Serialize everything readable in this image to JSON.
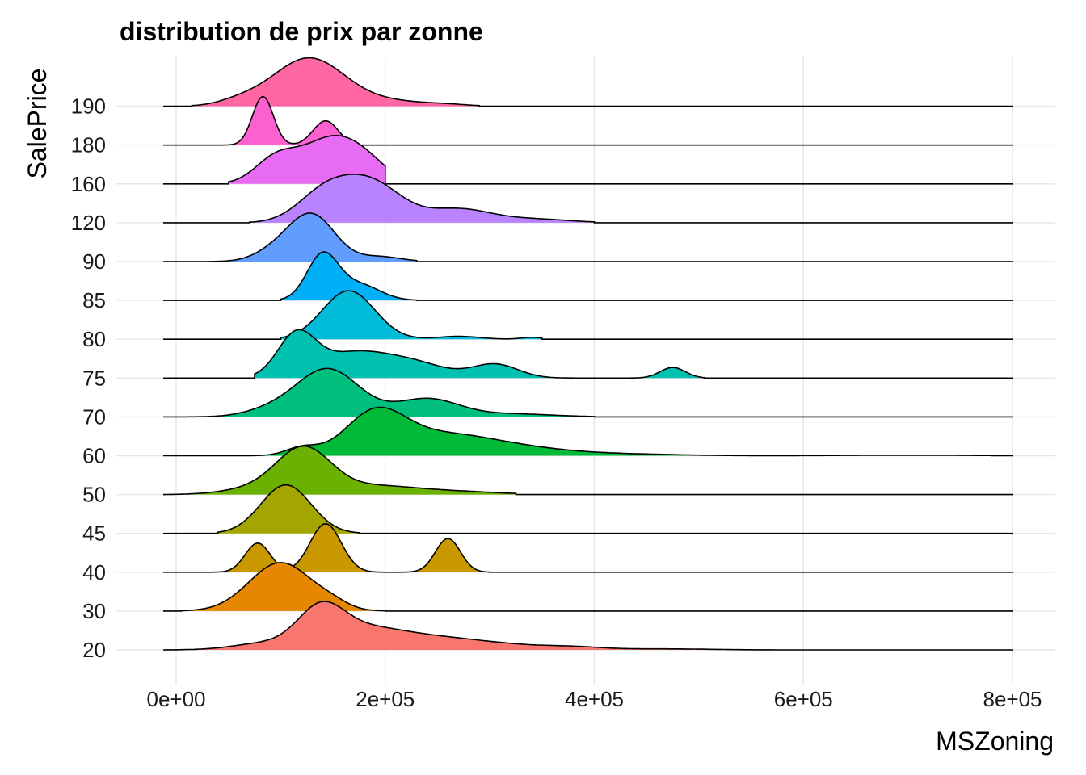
{
  "chart_data": {
    "type": "area",
    "title": "distribution de prix par zonne",
    "xlabel": "MSZoning",
    "ylabel": "SalePrice",
    "xlim": [
      -30000,
      840000
    ],
    "x_ticks": [
      0,
      200000,
      400000,
      600000,
      800000
    ],
    "x_tick_labels": [
      "0e+00",
      "2e+05",
      "4e+05",
      "6e+05",
      "8e+05"
    ],
    "grid": true,
    "legend": "none",
    "categories": [
      "20",
      "30",
      "40",
      "45",
      "50",
      "60",
      "70",
      "75",
      "80",
      "85",
      "90",
      "120",
      "160",
      "180",
      "190"
    ],
    "series": [
      {
        "category": "20",
        "color": "#F8766D",
        "range": [
          -10000,
          800000
        ],
        "peaks": [
          [
            85000,
            0.1,
            30000
          ],
          [
            138000,
            0.55,
            22000
          ],
          [
            175000,
            0.25,
            35000
          ],
          [
            230000,
            0.17,
            45000
          ],
          [
            300000,
            0.08,
            45000
          ],
          [
            380000,
            0.04,
            30000
          ],
          [
            470000,
            0.015,
            40000
          ]
        ]
      },
      {
        "category": "30",
        "color": "#E58700",
        "range": [
          5000,
          200000
        ],
        "peaks": [
          [
            100000,
            1.0,
            30000
          ],
          [
            150000,
            0.1,
            15000
          ]
        ]
      },
      {
        "category": "40",
        "color": "#C99800",
        "range": [
          35000,
          300000
        ],
        "peaks": [
          [
            78000,
            0.45,
            12000
          ],
          [
            143000,
            0.75,
            15000
          ],
          [
            260000,
            0.52,
            12000
          ]
        ]
      },
      {
        "category": "45",
        "color": "#A3A500",
        "range": [
          40000,
          175000
        ],
        "peaks": [
          [
            105000,
            1.0,
            24000
          ]
        ]
      },
      {
        "category": "50",
        "color": "#6BB100",
        "range": [
          -10000,
          325000
        ],
        "peaks": [
          [
            122000,
            0.8,
            26000
          ],
          [
            75000,
            0.1,
            30000
          ],
          [
            190000,
            0.15,
            40000
          ],
          [
            270000,
            0.05,
            40000
          ]
        ]
      },
      {
        "category": "60",
        "color": "#00BA38",
        "range": [
          60000,
          780000
        ],
        "peaks": [
          [
            120000,
            0.15,
            15000
          ],
          [
            190000,
            0.75,
            28000
          ],
          [
            250000,
            0.4,
            50000
          ],
          [
            330000,
            0.12,
            50000
          ],
          [
            430000,
            0.03,
            50000
          ],
          [
            700000,
            0.01,
            60000
          ]
        ]
      },
      {
        "category": "70",
        "color": "#00BF7D",
        "range": [
          -10000,
          400000
        ],
        "peaks": [
          [
            145000,
            0.8,
            30000
          ],
          [
            90000,
            0.1,
            25000
          ],
          [
            240000,
            0.3,
            30000
          ],
          [
            320000,
            0.05,
            40000
          ]
        ]
      },
      {
        "category": "75",
        "color": "#00C0AF",
        "range": [
          75000,
          505000
        ],
        "peaks": [
          [
            115000,
            0.65,
            18000
          ],
          [
            170000,
            0.4,
            35000
          ],
          [
            230000,
            0.2,
            30000
          ],
          [
            305000,
            0.22,
            22000
          ],
          [
            475000,
            0.17,
            12000
          ]
        ]
      },
      {
        "category": "80",
        "color": "#00BCD8",
        "range": [
          100000,
          350000
        ],
        "peaks": [
          [
            165000,
            1.0,
            25000
          ],
          [
            270000,
            0.06,
            20000
          ],
          [
            340000,
            0.04,
            10000
          ]
        ]
      },
      {
        "category": "85",
        "color": "#00B0F6",
        "range": [
          100000,
          230000
        ],
        "peaks": [
          [
            140000,
            1.0,
            15000
          ],
          [
            175000,
            0.35,
            20000
          ]
        ]
      },
      {
        "category": "90",
        "color": "#619CFF",
        "range": [
          30000,
          230000
        ],
        "peaks": [
          [
            130000,
            0.95,
            22000
          ],
          [
            95000,
            0.2,
            20000
          ],
          [
            195000,
            0.1,
            20000
          ]
        ]
      },
      {
        "category": "120",
        "color": "#B983FF",
        "range": [
          70000,
          400000
        ],
        "peaks": [
          [
            185000,
            0.55,
            30000
          ],
          [
            140000,
            0.35,
            25000
          ],
          [
            270000,
            0.18,
            30000
          ],
          [
            340000,
            0.05,
            35000
          ]
        ]
      },
      {
        "category": "160",
        "color": "#E76BF3",
        "range": [
          50000,
          200000
        ],
        "peaks": [
          [
            150000,
            0.8,
            30000
          ],
          [
            95000,
            0.4,
            20000
          ],
          [
            185000,
            0.15,
            20000
          ]
        ]
      },
      {
        "category": "180",
        "color": "#FD61D1",
        "range": [
          35000,
          160000
        ],
        "peaks": [
          [
            83000,
            1.0,
            10000
          ],
          [
            143000,
            0.5,
            12000
          ]
        ]
      },
      {
        "category": "190",
        "color": "#FF67A4",
        "range": [
          15000,
          290000
        ],
        "peaks": [
          [
            127000,
            0.9,
            35000
          ],
          [
            60000,
            0.08,
            20000
          ],
          [
            210000,
            0.08,
            30000
          ],
          [
            260000,
            0.03,
            20000
          ]
        ]
      }
    ]
  }
}
